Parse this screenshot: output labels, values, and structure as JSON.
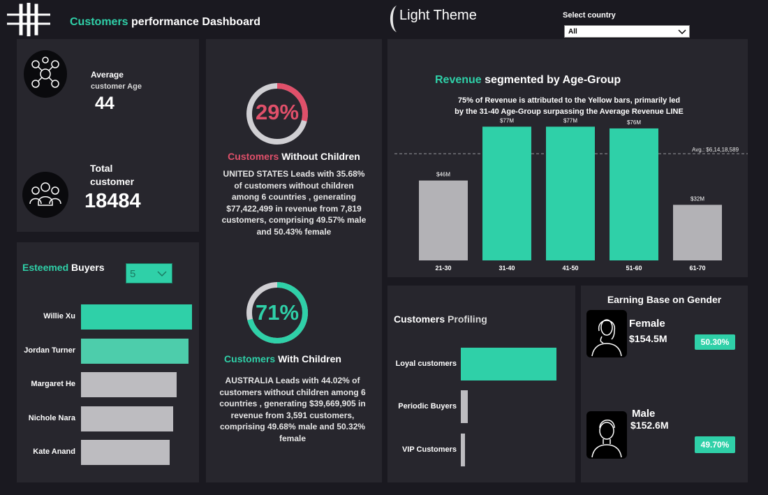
{
  "header": {
    "title_highlight": "Customers",
    "title_rest": "performance Dashboard",
    "theme_label": "Light Theme",
    "country_label": "Select country",
    "country_value": "All"
  },
  "kpi": {
    "avg_age_label_1": "Average",
    "avg_age_label_2": "customer Age",
    "avg_age_value": "44",
    "total_label_1": "Total",
    "total_label_2": "customer",
    "total_value": "18484"
  },
  "buyers": {
    "title_highlight": "Esteemed",
    "title_rest": "Buyers",
    "topn_value": "5",
    "items": [
      {
        "name": "Willie Xu",
        "value": 1.0,
        "color": "#2fd0a8"
      },
      {
        "name": "Jordan Turner",
        "value": 0.97,
        "color": "#4dcdab"
      },
      {
        "name": "Margaret He",
        "value": 0.86,
        "color": "#bdbcc0"
      },
      {
        "name": "Nichole Nara",
        "value": 0.83,
        "color": "#bdbcc0"
      },
      {
        "name": "Kate Anand",
        "value": 0.8,
        "color": "#bdbcc0"
      }
    ]
  },
  "without_children": {
    "percent": "29%",
    "percent_value": 29,
    "title_highlight": "Customers",
    "title_rest": "Without Children",
    "desc": "UNITED STATES Leads with 35.68% of customers without children among 6 countries , generating $77,422,499 in revenue from 7,819 customers, comprising 49.57% male and 50.43% female"
  },
  "with_children": {
    "percent": "71%",
    "percent_value": 71,
    "title_highlight": "Customers",
    "title_rest": "With Children",
    "desc": "AUSTRALIA Leads with 44.02% of customers without children among 6 countries , generating $39,669,905 in revenue from 3,591 customers, comprising 49.68% male and 50.32% female"
  },
  "revenue": {
    "title_highlight": "Revenue",
    "title_rest": "segmented by Age-Group",
    "subtitle_1": "75% of Revenue is attributed to the Yellow bars, primarily led",
    "subtitle_2": "by the 31-40 Age-Group surpassing the Average Revenue LINE",
    "avg_label": "Avg.: $6,14,18,589"
  },
  "chart_data": {
    "type": "bar",
    "title": "Revenue segmented by Age-Group",
    "categories": [
      "21-30",
      "31-40",
      "41-50",
      "51-60",
      "61-70"
    ],
    "values": [
      46,
      77,
      77,
      76,
      32
    ],
    "value_labels": [
      "$46M",
      "$77M",
      "$77M",
      "$76M",
      "$32M"
    ],
    "colors": [
      "#b3b2b6",
      "#2fd0a8",
      "#2fd0a8",
      "#2fd0a8",
      "#b3b2b6"
    ],
    "average": 61.42,
    "ylim": [
      0,
      82
    ],
    "unit": "$M"
  },
  "profiling": {
    "title_part1": "Customers",
    "title_part2": "Profiling",
    "items": [
      {
        "label": "Loyal customers",
        "value": 1.0,
        "color": "#2fd0a8"
      },
      {
        "label": "Periodic Buyers",
        "value": 0.07,
        "color": "#bdbcc0"
      },
      {
        "label": "VIP Customers",
        "value": 0.04,
        "color": "#bdbcc0"
      }
    ]
  },
  "gender": {
    "title": "Earning Base on Gender",
    "female_label": "Female",
    "female_value": "$154.5M",
    "female_pct": "50.30%",
    "male_label": "Male",
    "male_value": "$152.6M",
    "male_pct": "49.70%"
  }
}
